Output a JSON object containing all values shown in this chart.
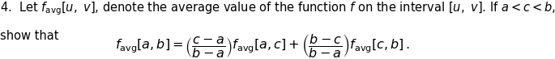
{
  "line1": "4.  Let $f_{\\mathrm{avg}}[u,\\ v]$, denote the average value of the function $f$ on the interval $[u,\\ v]$. If $a < c < b$,",
  "line2": "show that",
  "equation": "$f_{\\mathrm{avg}}[a, b] = \\left(\\dfrac{c-a}{b-a}\\right) f_{\\mathrm{avg}}[a, c] + \\left(\\dfrac{b-c}{b-a}\\right) f_{\\mathrm{avg}}[c, b]\\,.$",
  "bg_color": "#ffffff",
  "text_color": "#000000",
  "fontsize_body": 10.5,
  "fontsize_eq": 11.5
}
